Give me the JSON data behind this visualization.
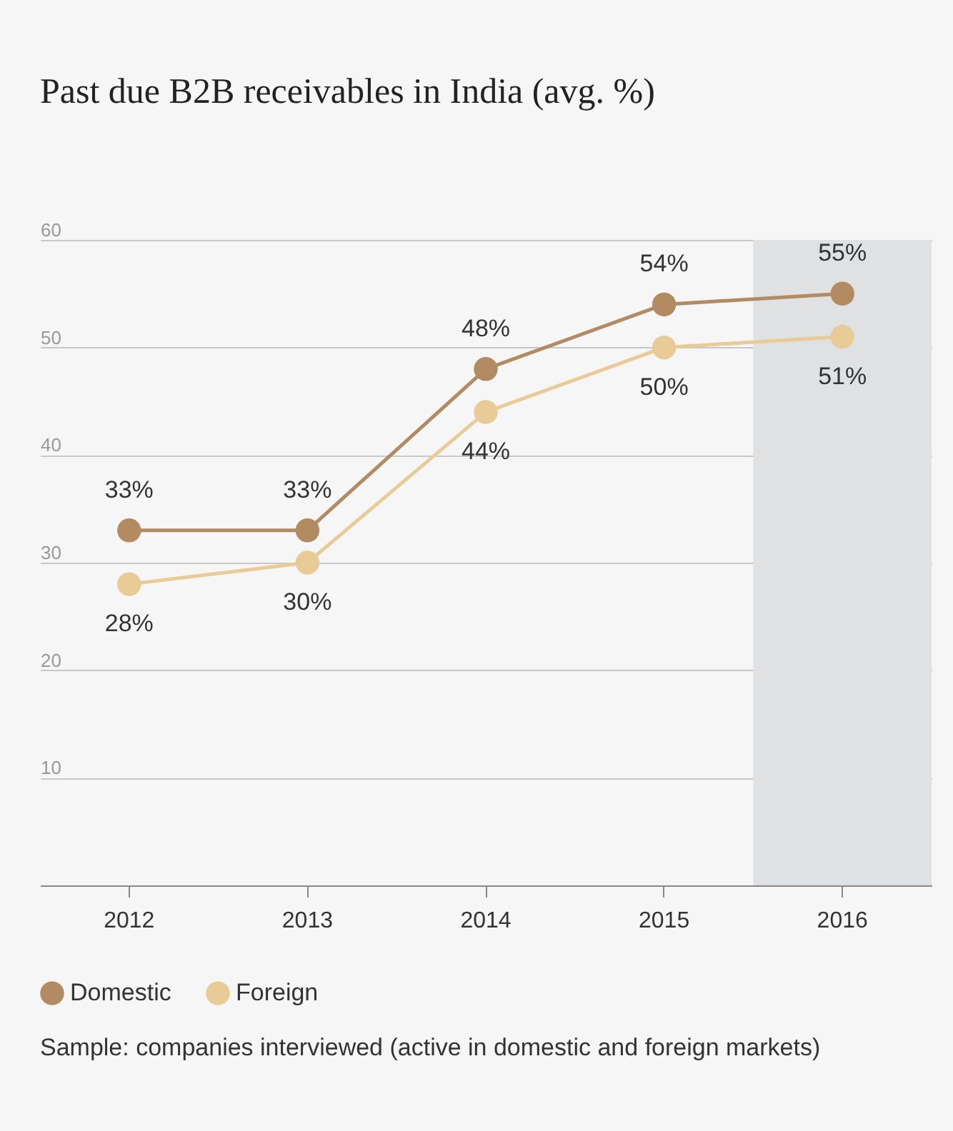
{
  "chart_data": {
    "type": "line",
    "title": "Past due B2B receivables in India (avg. %)",
    "categories": [
      "2012",
      "2013",
      "2014",
      "2015",
      "2016"
    ],
    "series": [
      {
        "name": "Domestic",
        "color": "#b38b63",
        "values": [
          33,
          33,
          48,
          54,
          55
        ],
        "value_labels": [
          "33%",
          "33%",
          "48%",
          "54%",
          "55%"
        ]
      },
      {
        "name": "Foreign",
        "color": "#e9cb97",
        "values": [
          28,
          30,
          44,
          50,
          51
        ],
        "value_labels": [
          "28%",
          "30%",
          "44%",
          "50%",
          "51%"
        ]
      }
    ],
    "ylim": [
      0,
      60
    ],
    "yticks": [
      10,
      20,
      30,
      40,
      50,
      60
    ],
    "grid": "y",
    "marker": "circle",
    "line_style": "solid",
    "legend": "bottom left",
    "bands": [
      {
        "axis": "x",
        "from": "2016",
        "to": "2016",
        "color": "#e0e1e3"
      }
    ],
    "annotations": [
      "Sample: companies interviewed (active in domestic and foreign markets)"
    ]
  }
}
